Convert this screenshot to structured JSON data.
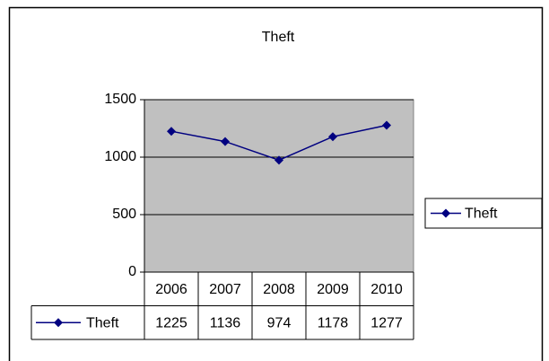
{
  "chart_data": {
    "type": "line",
    "title": "Theft",
    "categories": [
      "2006",
      "2007",
      "2008",
      "2009",
      "2010"
    ],
    "series": [
      {
        "name": "Theft",
        "color": "#000080",
        "values": [
          1225,
          1136,
          974,
          1178,
          1277
        ]
      }
    ],
    "ylim": [
      0,
      1500
    ],
    "yticks": [
      0,
      500,
      1000,
      1500
    ],
    "grid": true,
    "legend": "right",
    "data_table": true
  }
}
